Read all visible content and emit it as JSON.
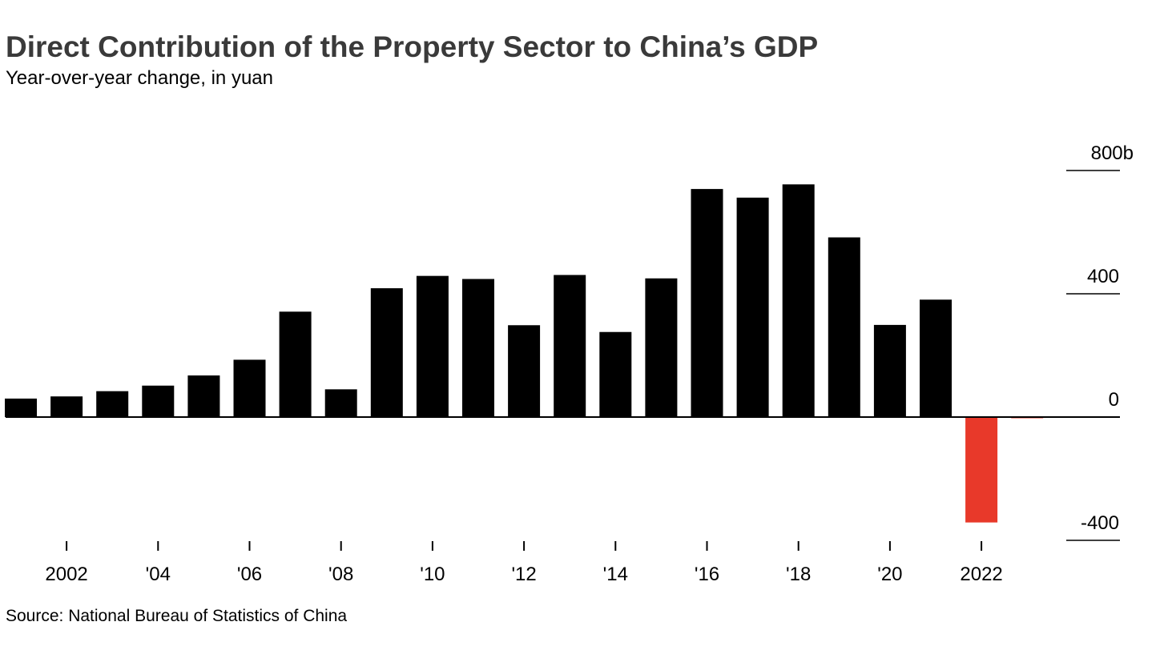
{
  "title": "Direct Contribution of the Property Sector to China’s GDP",
  "subtitle": "Year-over-year change, in yuan",
  "source": "Source: National Bureau of Statistics of China",
  "chart_data": {
    "type": "bar",
    "categories": [
      "2001",
      "2002",
      "2003",
      "2004",
      "2005",
      "2006",
      "2007",
      "2008",
      "2009",
      "2010",
      "2011",
      "2012",
      "2013",
      "2014",
      "2015",
      "2016",
      "2017",
      "2018",
      "2019",
      "2020",
      "2021",
      "2022",
      "2023"
    ],
    "values": [
      60,
      67,
      84,
      102,
      135,
      186,
      342,
      90,
      418,
      458,
      448,
      298,
      461,
      276,
      450,
      740,
      712,
      755,
      583,
      299,
      381,
      -342,
      -3
    ],
    "ylim": [
      -400,
      800
    ],
    "yticks": [
      {
        "value": 800,
        "label": "800b"
      },
      {
        "value": 400,
        "label": "400"
      },
      {
        "value": 0,
        "label": "0"
      },
      {
        "value": -400,
        "label": "-400"
      }
    ],
    "xticks": [
      {
        "category": "2002",
        "label": "2002"
      },
      {
        "category": "2004",
        "label": "'04"
      },
      {
        "category": "2006",
        "label": "'06"
      },
      {
        "category": "2008",
        "label": "'08"
      },
      {
        "category": "2010",
        "label": "'10"
      },
      {
        "category": "2012",
        "label": "'12"
      },
      {
        "category": "2014",
        "label": "'14"
      },
      {
        "category": "2016",
        "label": "'16"
      },
      {
        "category": "2018",
        "label": "'18"
      },
      {
        "category": "2020",
        "label": "'20"
      },
      {
        "category": "2022",
        "label": "2022"
      }
    ],
    "colors": {
      "positive": "#000000",
      "negative": "#e8392a",
      "axis": "#000000"
    }
  }
}
